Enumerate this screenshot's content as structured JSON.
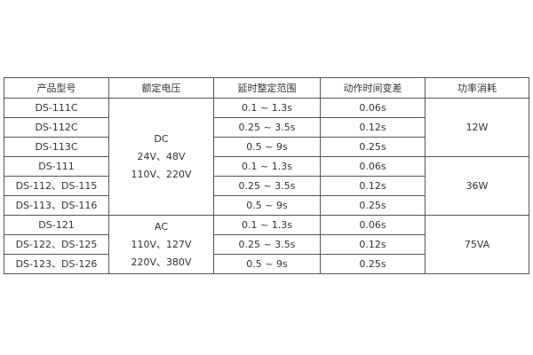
{
  "headers": [
    "产品型号",
    "额定电压",
    "延时整定范围",
    "动作时间变差",
    "功率消耗"
  ],
  "models": [
    "DS-111C",
    "DS-112C",
    "DS-113C",
    "DS-111",
    "DS-112、DS-115",
    "DS-113、DS-116",
    "DS-121",
    "DS-122、DS-125",
    "DS-123、DS-126"
  ],
  "voltage_groups": [
    {
      "lines": [
        "DC",
        "24V、48V",
        "110V、220V"
      ]
    },
    {
      "lines": [
        "AC",
        "110V、127V",
        "220V、380V"
      ]
    }
  ],
  "ranges": [
    "0.1 ~ 1.3s",
    "0.25 ~ 3.5s",
    "0.5 ~ 9s",
    "0.1 ~ 1.3s",
    "0.25 ~ 3.5s",
    "0.5 ~ 9s",
    "0.1 ~ 1.3s",
    "0.25 ~ 3.5s",
    "0.5 ~ 9s"
  ],
  "variations": [
    "0.06s",
    "0.12s",
    "0.25s",
    "0.06s",
    "0.12s",
    "0.25s",
    "0.06s",
    "0.12s",
    "0.25s"
  ],
  "power": [
    "12W",
    "36W",
    "75VA"
  ]
}
